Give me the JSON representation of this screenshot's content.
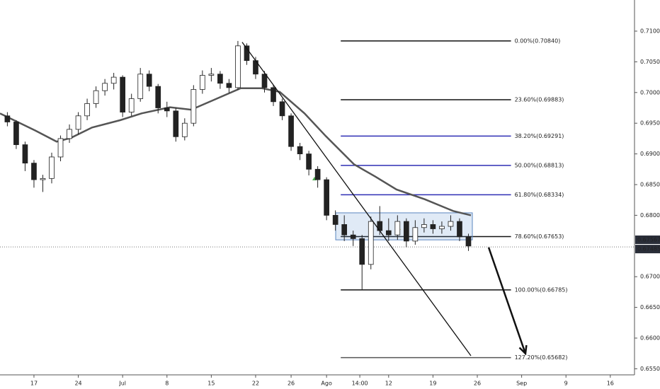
{
  "chart_data": {
    "type": "candlestick",
    "xlim": [
      -3.83,
      67.65
    ],
    "ylim": [
      0.65401,
      0.71507
    ],
    "grid": false,
    "xticks": [
      {
        "value": 0,
        "label": "17"
      },
      {
        "value": 5,
        "label": "24"
      },
      {
        "value": 10,
        "label": "Jul"
      },
      {
        "value": 15,
        "label": "8"
      },
      {
        "value": 20,
        "label": "15"
      },
      {
        "value": 25,
        "label": "22"
      },
      {
        "value": 29,
        "label": "26"
      },
      {
        "value": 33,
        "label": "Ago"
      },
      {
        "value": 36.75,
        "label": "14:00"
      },
      {
        "value": 40,
        "label": "12"
      },
      {
        "value": 45,
        "label": "19"
      },
      {
        "value": 50,
        "label": "26"
      },
      {
        "value": 55,
        "label": "Sep"
      },
      {
        "value": 60,
        "label": "9"
      },
      {
        "value": 65,
        "label": "16"
      }
    ],
    "yticks": [
      {
        "value": 0.71,
        "label": "0.71000"
      },
      {
        "value": 0.705,
        "label": "0.70500"
      },
      {
        "value": 0.7,
        "label": "0.70000"
      },
      {
        "value": 0.695,
        "label": "0.69500"
      },
      {
        "value": 0.69,
        "label": "0.69000"
      },
      {
        "value": 0.685,
        "label": "0.68500"
      },
      {
        "value": 0.68,
        "label": "0.68000"
      },
      {
        "value": 0.67,
        "label": "0.67000"
      },
      {
        "value": 0.665,
        "label": "0.66500"
      },
      {
        "value": 0.66,
        "label": "0.66000"
      },
      {
        "value": 0.655,
        "label": "0.65500"
      }
    ],
    "up_color": "#ffffff",
    "down_color": "#222222",
    "candles": {
      "x": [
        -3,
        -2,
        -1,
        0,
        1,
        2,
        3,
        4,
        5,
        6,
        7,
        8,
        9,
        10,
        11,
        12,
        13,
        14,
        15,
        16,
        17,
        18,
        19,
        20,
        21,
        22,
        23,
        24,
        25,
        26,
        27,
        28,
        29,
        30,
        31,
        32,
        33,
        34,
        35,
        36,
        37,
        38,
        39,
        40,
        41,
        42,
        43,
        44,
        45,
        46,
        47,
        48,
        49
      ],
      "open": [
        0.6962,
        0.6952,
        0.6915,
        0.6885,
        0.6858,
        0.686,
        0.6895,
        0.6925,
        0.694,
        0.6962,
        0.6982,
        0.7003,
        0.7015,
        0.7025,
        0.6968,
        0.699,
        0.703,
        0.701,
        0.6975,
        0.697,
        0.6928,
        0.695,
        0.7005,
        0.7028,
        0.703,
        0.7015,
        0.7008,
        0.7076,
        0.7052,
        0.703,
        0.7008,
        0.6985,
        0.6962,
        0.6912,
        0.69,
        0.6875,
        0.6858,
        0.68,
        0.6785,
        0.6768,
        0.6762,
        0.672,
        0.679,
        0.6775,
        0.6768,
        0.679,
        0.6758,
        0.678,
        0.6785,
        0.6778,
        0.6782,
        0.679,
        0.6765
      ],
      "high": [
        0.6968,
        0.6955,
        0.692,
        0.689,
        0.6866,
        0.6902,
        0.693,
        0.6948,
        0.6968,
        0.699,
        0.701,
        0.7022,
        0.7032,
        0.7028,
        0.6998,
        0.704,
        0.7036,
        0.7014,
        0.6985,
        0.6975,
        0.6958,
        0.7012,
        0.7036,
        0.704,
        0.7035,
        0.7022,
        0.7084,
        0.708,
        0.7058,
        0.7035,
        0.7012,
        0.699,
        0.6966,
        0.6918,
        0.6905,
        0.688,
        0.6862,
        0.6808,
        0.68,
        0.6775,
        0.6768,
        0.6798,
        0.6815,
        0.6795,
        0.68,
        0.6795,
        0.6792,
        0.6795,
        0.6792,
        0.679,
        0.68,
        0.6795,
        0.677
      ],
      "low": [
        0.6945,
        0.6908,
        0.6872,
        0.6845,
        0.6838,
        0.6852,
        0.6888,
        0.6918,
        0.6932,
        0.6955,
        0.6975,
        0.6995,
        0.7005,
        0.696,
        0.6962,
        0.6985,
        0.7002,
        0.6966,
        0.696,
        0.692,
        0.6922,
        0.6945,
        0.6998,
        0.7018,
        0.7006,
        0.7,
        0.7004,
        0.7045,
        0.7022,
        0.7,
        0.6978,
        0.6955,
        0.6905,
        0.689,
        0.6865,
        0.6845,
        0.6792,
        0.6775,
        0.6758,
        0.675,
        0.66785,
        0.6712,
        0.6768,
        0.6758,
        0.676,
        0.6748,
        0.6752,
        0.6772,
        0.677,
        0.677,
        0.6775,
        0.6758,
        0.6742
      ],
      "close": [
        0.6952,
        0.6915,
        0.6885,
        0.6858,
        0.686,
        0.6895,
        0.6925,
        0.694,
        0.6962,
        0.6982,
        0.7003,
        0.7015,
        0.7025,
        0.6968,
        0.699,
        0.703,
        0.701,
        0.6975,
        0.697,
        0.6928,
        0.695,
        0.7005,
        0.7028,
        0.703,
        0.7015,
        0.7008,
        0.7076,
        0.7052,
        0.703,
        0.7008,
        0.6985,
        0.6962,
        0.6912,
        0.69,
        0.6875,
        0.6858,
        0.68,
        0.6785,
        0.6768,
        0.6762,
        0.672,
        0.679,
        0.6775,
        0.6768,
        0.679,
        0.6758,
        0.678,
        0.6785,
        0.6778,
        0.6782,
        0.679,
        0.6765,
        0.675
      ]
    },
    "moving_average": {
      "color": "#555555",
      "x": [
        -3.83,
        0.16,
        2.56,
        4.15,
        6.55,
        9.74,
        12.14,
        15.34,
        17.73,
        20.13,
        23.32,
        25.72,
        27.72,
        30.51,
        32.91,
        36.1,
        38.5,
        40.89,
        44.09,
        47.28,
        49.28
      ],
      "values": [
        0.6966,
        0.6938,
        0.692,
        0.6926,
        0.6943,
        0.6955,
        0.6966,
        0.6976,
        0.6972,
        0.6987,
        0.7007,
        0.7007,
        0.7001,
        0.6966,
        0.6929,
        0.6883,
        0.6863,
        0.6842,
        0.6826,
        0.6807,
        0.68
      ]
    },
    "fib_x": [
      34.6,
      53.8
    ],
    "fib_levels": [
      {
        "value": 0.7084,
        "label": "0.00%(0.70840)",
        "color": "#111111"
      },
      {
        "value": 0.69883,
        "label": "23.60%(0.69883)",
        "color": "#111111"
      },
      {
        "value": 0.69291,
        "label": "38.20%(0.69291)",
        "color": "#2f2fb5"
      },
      {
        "value": 0.68813,
        "label": "50.00%(0.68813)",
        "color": "#2f2fb5"
      },
      {
        "value": 0.68334,
        "label": "61.80%(0.68334)",
        "color": "#2f2fb5"
      },
      {
        "value": 0.67653,
        "label": "78.60%(0.67653)",
        "color": "#111111"
      },
      {
        "value": 0.66785,
        "label": "100.00%(0.66785)",
        "color": "#111111"
      },
      {
        "value": 0.65682,
        "label": "127.20%(0.65682)",
        "color": "#555555"
      }
    ],
    "trendline": {
      "x": [
        23.48,
        49.28
      ],
      "values": [
        0.7082,
        0.65712
      ]
    },
    "range_box": {
      "x": [
        34.03,
        49.44
      ],
      "values": [
        0.6804,
        0.676
      ]
    },
    "arrow": {
      "x": [
        51.28,
        55.43
      ],
      "values": [
        0.67477,
        0.65747
      ]
    },
    "price_labels": [
      0.67567,
      0.67485
    ]
  }
}
